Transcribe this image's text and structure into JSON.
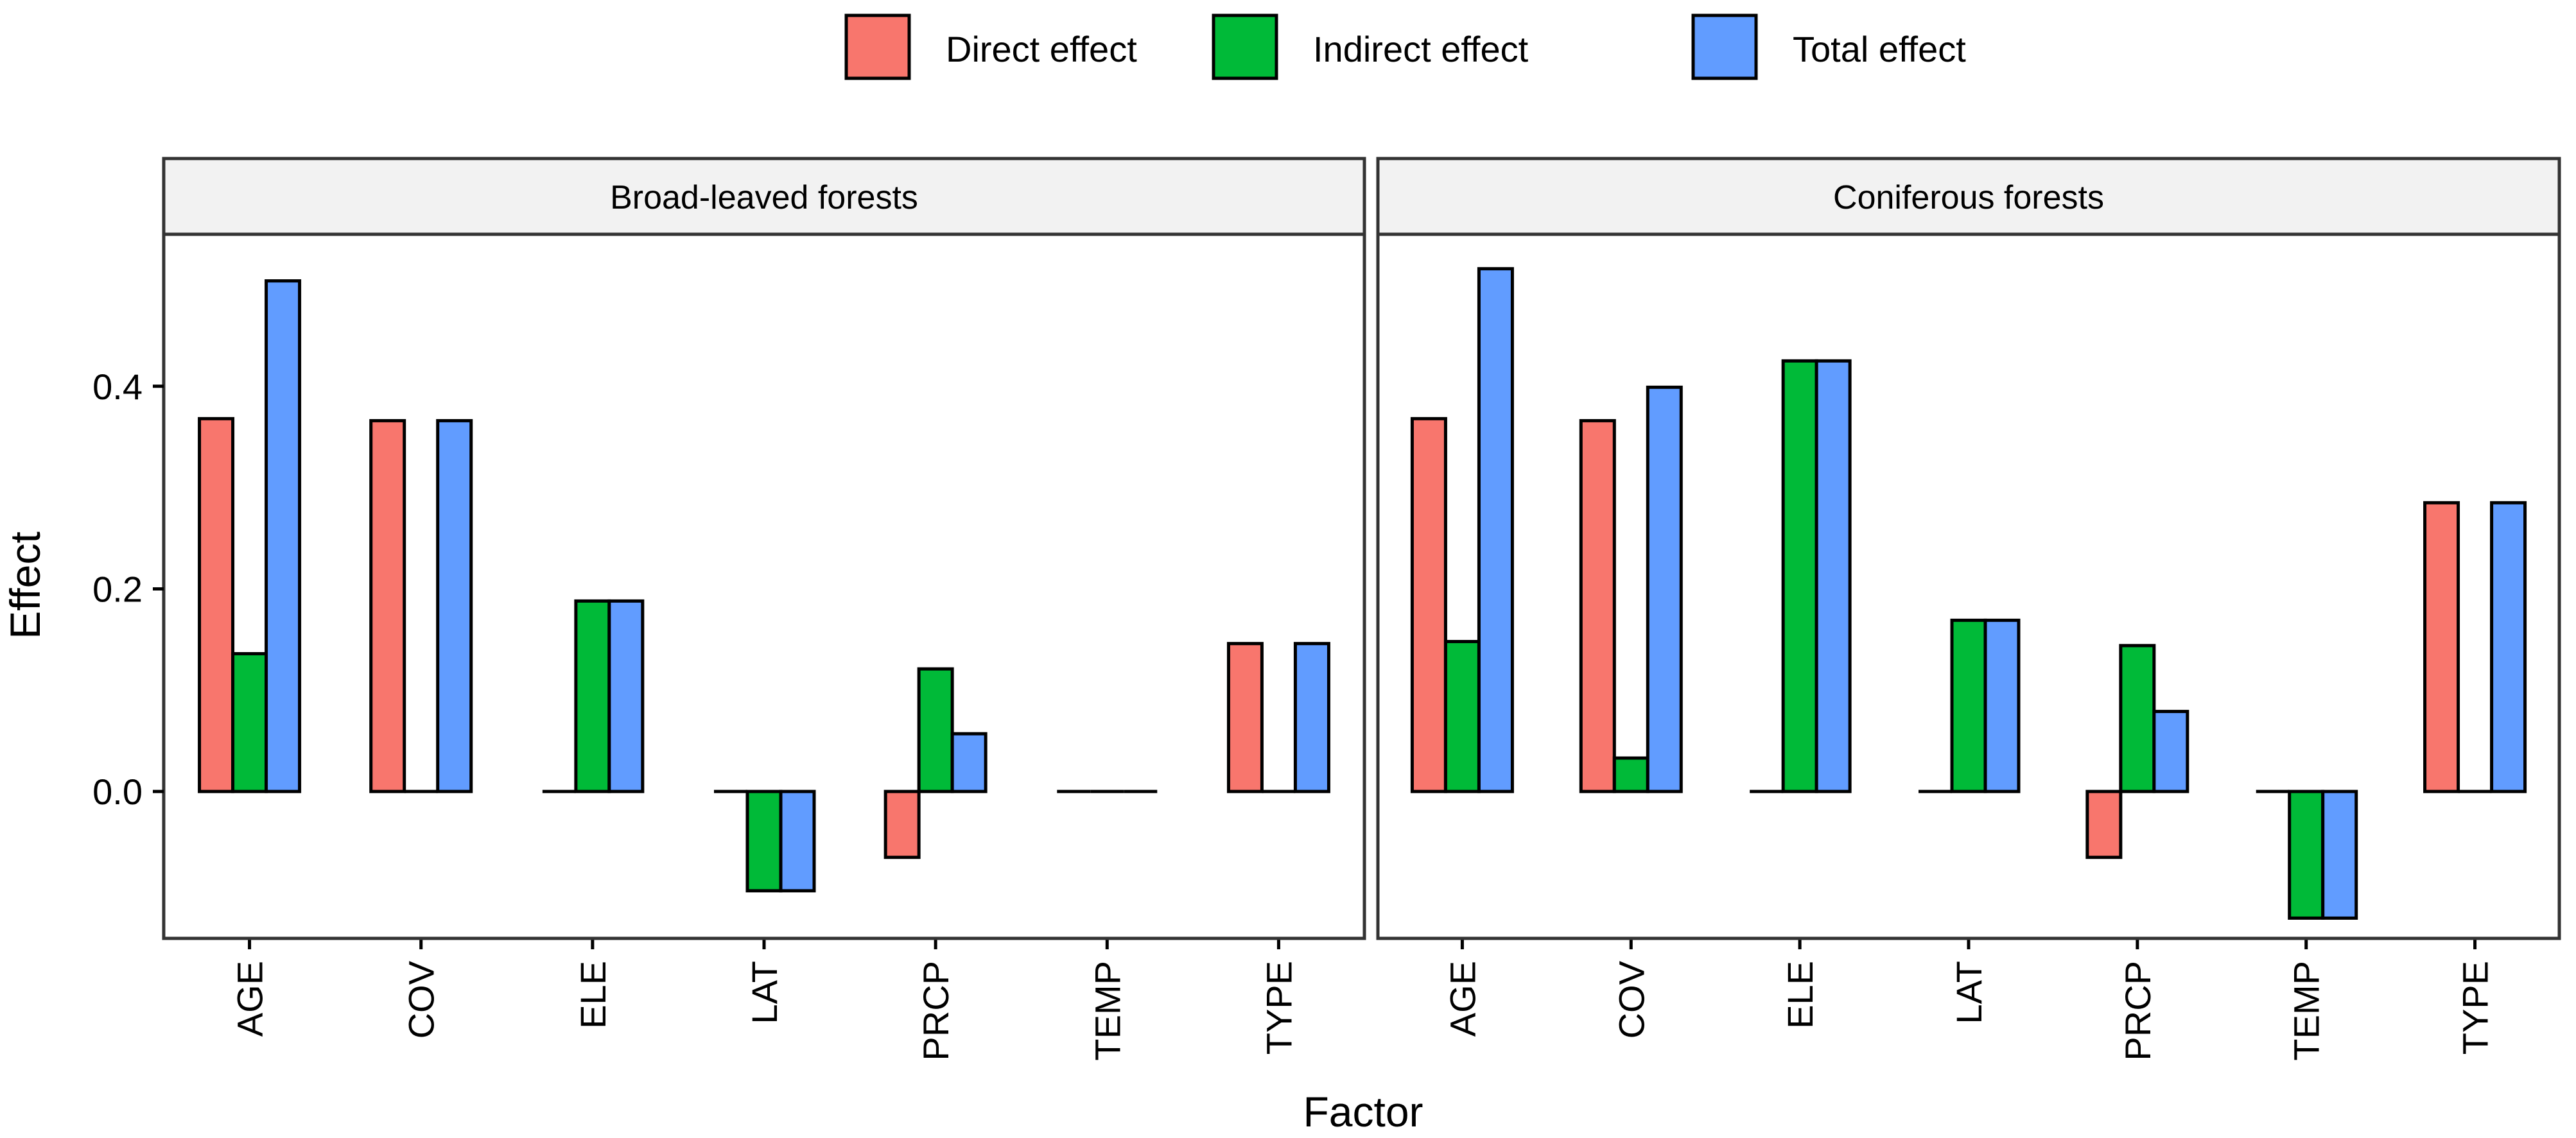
{
  "chart_data": {
    "type": "bar",
    "xlabel": "Factor",
    "ylabel": "Effect",
    "ylim": [
      -0.145,
      0.55
    ],
    "yticks": [
      0.0,
      0.2,
      0.4
    ],
    "ytick_labels": [
      "0.0",
      "0.2",
      "0.4"
    ],
    "grid": false,
    "legend_position": "top",
    "categories": [
      "AGE",
      "COV",
      "ELE",
      "LAT",
      "PRCP",
      "TEMP",
      "TYPE"
    ],
    "series_names": [
      "Direct effect",
      "Indirect effect",
      "Total effect"
    ],
    "colors": [
      "#F8766D",
      "#00BA38",
      "#619CFF"
    ],
    "panels": [
      {
        "title": "Broad-leaved forests",
        "series": [
          {
            "name": "Direct effect",
            "values": [
              0.368,
              0.366,
              0,
              0,
              -0.065,
              0,
              0.146
            ]
          },
          {
            "name": "Indirect effect",
            "values": [
              0.136,
              0,
              0.188,
              -0.098,
              0.121,
              0,
              0
            ]
          },
          {
            "name": "Total effect",
            "values": [
              0.504,
              0.366,
              0.188,
              -0.098,
              0.057,
              0,
              0.146
            ]
          }
        ]
      },
      {
        "title": "Coniferous forests",
        "series": [
          {
            "name": "Direct effect",
            "values": [
              0.368,
              0.366,
              0,
              0,
              -0.065,
              0,
              0.285
            ]
          },
          {
            "name": "Indirect effect",
            "values": [
              0.148,
              0.033,
              0.425,
              0.169,
              0.144,
              -0.125,
              0
            ]
          },
          {
            "name": "Total effect",
            "values": [
              0.516,
              0.399,
              0.425,
              0.169,
              0.079,
              -0.125,
              0.285
            ]
          }
        ]
      }
    ]
  }
}
